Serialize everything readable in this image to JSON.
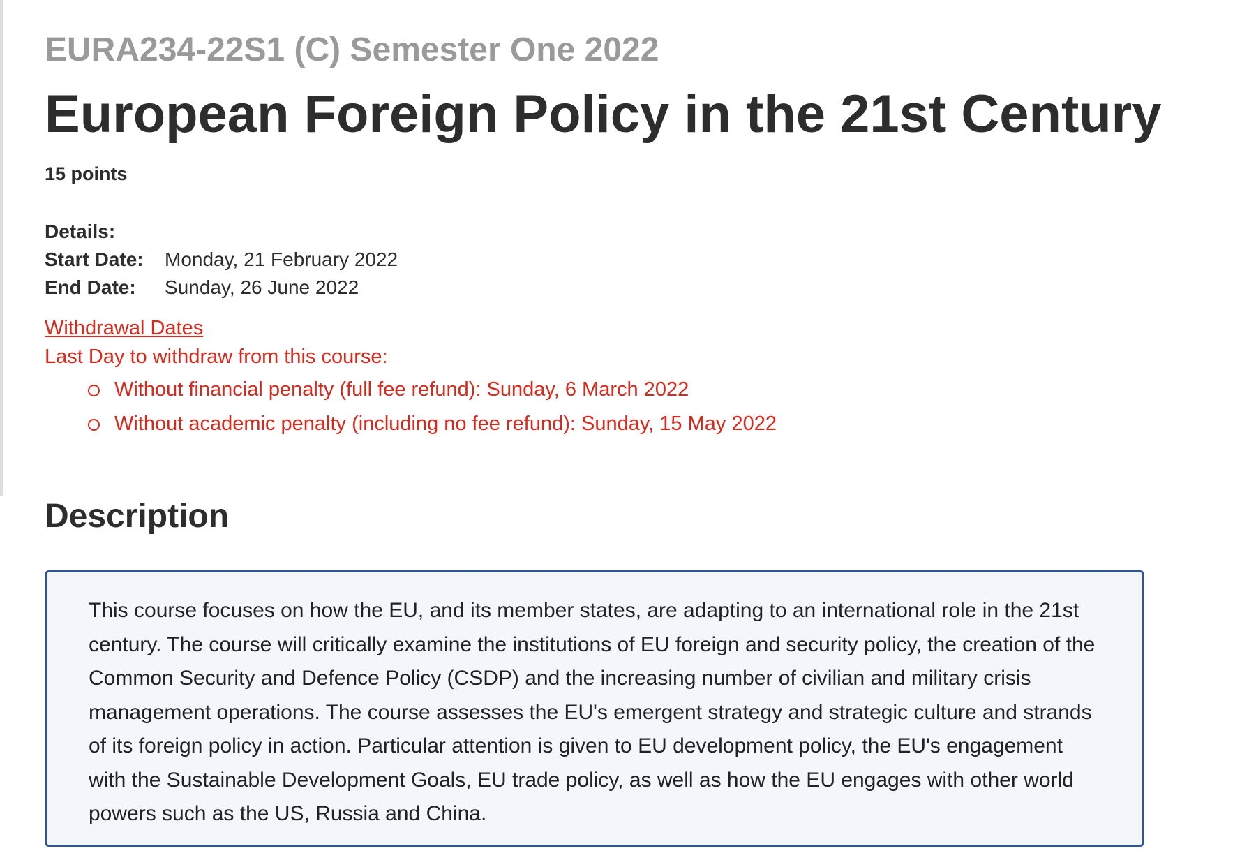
{
  "header": {
    "code": "EURA234-22S1 (C) Semester One 2022",
    "title": "European Foreign Policy in the 21st Century",
    "points": "15 points"
  },
  "details": {
    "label": "Details:",
    "rows": [
      {
        "label": "Start Date:",
        "value": "Monday, 21 February 2022"
      },
      {
        "label": "End Date:",
        "value": "Sunday, 26 June 2022"
      }
    ]
  },
  "withdrawal": {
    "link": "Withdrawal Dates",
    "intro": "Last Day to withdraw from this course:",
    "items": [
      "Without financial penalty (full fee refund): Sunday, 6 March 2022",
      "Without academic penalty (including no fee refund): Sunday, 15 May 2022"
    ]
  },
  "description": {
    "heading": "Description",
    "text": "This course focuses on how the EU, and its member states, are adapting to an international role in the 21st century. The course will critically examine the institutions of EU foreign and security policy, the creation of the Common Security and Defence Policy (CSDP) and the increasing number of civilian and military crisis management operations. The course assesses the EU's emergent strategy and strategic culture and strands of its foreign policy in action. Particular attention is given to EU development policy, the EU's engagement with the Sustainable Development Goals, EU trade policy, as well as how the EU engages with other world powers such as the US, Russia and China."
  }
}
